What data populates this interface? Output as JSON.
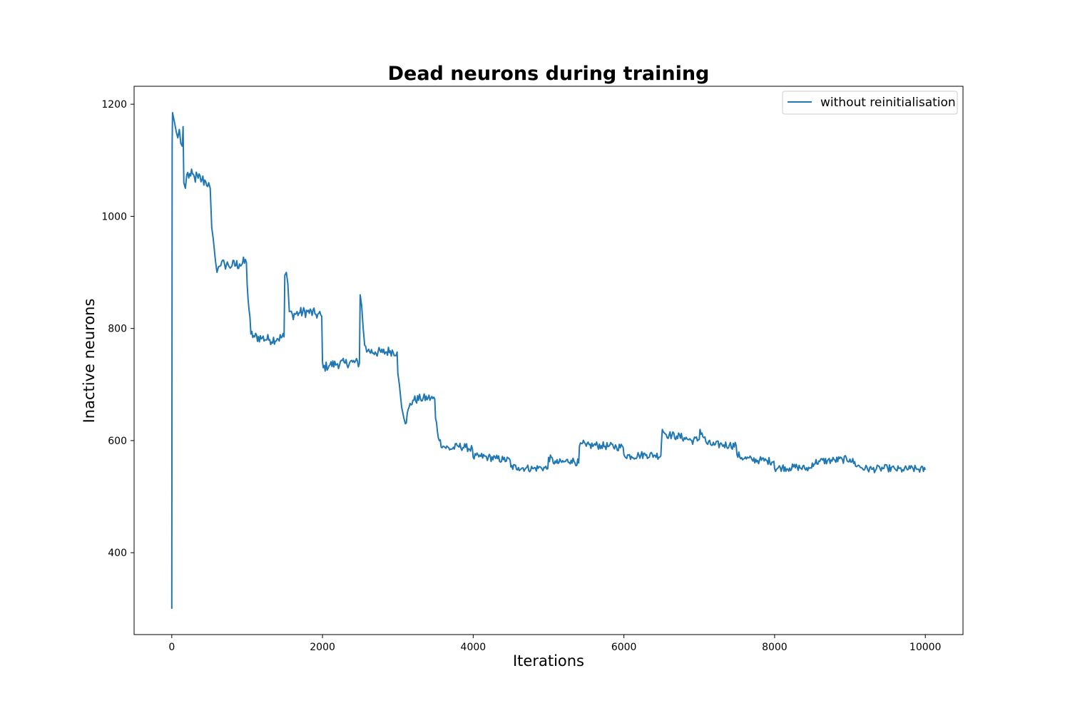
{
  "chart_data": {
    "type": "line",
    "title": "Dead neurons during training",
    "xlabel": "Iterations",
    "ylabel": "Inactive neurons",
    "xlim": [
      -500,
      10500
    ],
    "ylim": [
      254,
      1232
    ],
    "xticks": [
      0,
      2000,
      4000,
      6000,
      8000,
      10000
    ],
    "yticks": [
      400,
      600,
      800,
      1000,
      1200
    ],
    "grid": false,
    "legend_position": "top-right",
    "series_color": "#1f77b4",
    "series": [
      {
        "name": "without reinitialisation",
        "x": [
          0,
          5,
          10,
          20,
          40,
          60,
          80,
          100,
          120,
          140,
          150,
          160,
          180,
          200,
          250,
          300,
          350,
          400,
          450,
          490,
          500,
          510,
          530,
          550,
          580,
          600,
          620,
          650,
          700,
          750,
          800,
          900,
          990,
          1000,
          1050,
          1100,
          1200,
          1300,
          1400,
          1490,
          1500,
          1520,
          1540,
          1560,
          1600,
          1700,
          1800,
          1900,
          1990,
          2000,
          2010,
          2100,
          2200,
          2300,
          2400,
          2490,
          2500,
          2520,
          2540,
          2560,
          2600,
          2700,
          2800,
          2900,
          2990,
          3000,
          3020,
          3050,
          3080,
          3100,
          3150,
          3200,
          3300,
          3400,
          3490,
          3500,
          3550,
          3600,
          3700,
          3800,
          3900,
          3990,
          4000,
          4100,
          4200,
          4300,
          4400,
          4490,
          4500,
          4600,
          4700,
          4800,
          4900,
          4990,
          5000,
          5100,
          5200,
          5300,
          5400,
          5410,
          5450,
          5500,
          5600,
          5700,
          5800,
          5900,
          5990,
          6000,
          6100,
          6200,
          6300,
          6400,
          6490,
          6500,
          6510,
          6550,
          6600,
          6700,
          6800,
          6900,
          7000,
          7010,
          7100,
          7200,
          7300,
          7400,
          7490,
          7500,
          7600,
          7700,
          7800,
          7900,
          7990,
          8000,
          8100,
          8200,
          8300,
          8400,
          8490,
          8500,
          8600,
          8700,
          8800,
          8900,
          9000,
          9100,
          9200,
          9300,
          9400,
          9500,
          9600,
          9700,
          9800,
          9900,
          10000
        ],
        "y": [
          300,
          1130,
          1185,
          1178,
          1165,
          1150,
          1140,
          1155,
          1130,
          1125,
          1160,
          1060,
          1050,
          1075,
          1072,
          1070,
          1068,
          1065,
          1062,
          1060,
          1055,
          1050,
          980,
          960,
          920,
          900,
          910,
          912,
          915,
          913,
          912,
          915,
          918,
          880,
          790,
          785,
          783,
          780,
          782,
          785,
          895,
          900,
          880,
          830,
          825,
          828,
          830,
          826,
          822,
          740,
          730,
          735,
          737,
          738,
          740,
          738,
          860,
          840,
          800,
          770,
          760,
          758,
          757,
          760,
          758,
          720,
          700,
          660,
          640,
          630,
          660,
          672,
          675,
          676,
          674,
          640,
          600,
          590,
          585,
          590,
          588,
          585,
          570,
          572,
          570,
          568,
          566,
          565,
          553,
          552,
          551,
          550,
          552,
          550,
          570,
          560,
          562,
          565,
          560,
          590,
          595,
          590,
          592,
          591,
          590,
          589,
          588,
          575,
          572,
          574,
          575,
          574,
          573,
          600,
          620,
          612,
          610,
          608,
          605,
          600,
          602,
          620,
          595,
          592,
          593,
          592,
          591,
          575,
          568,
          566,
          565,
          564,
          563,
          550,
          552,
          551,
          553,
          550,
          551,
          560,
          563,
          564,
          565,
          566,
          567,
          555,
          550,
          549,
          550,
          551,
          549,
          548,
          550,
          549,
          548
        ]
      }
    ]
  }
}
